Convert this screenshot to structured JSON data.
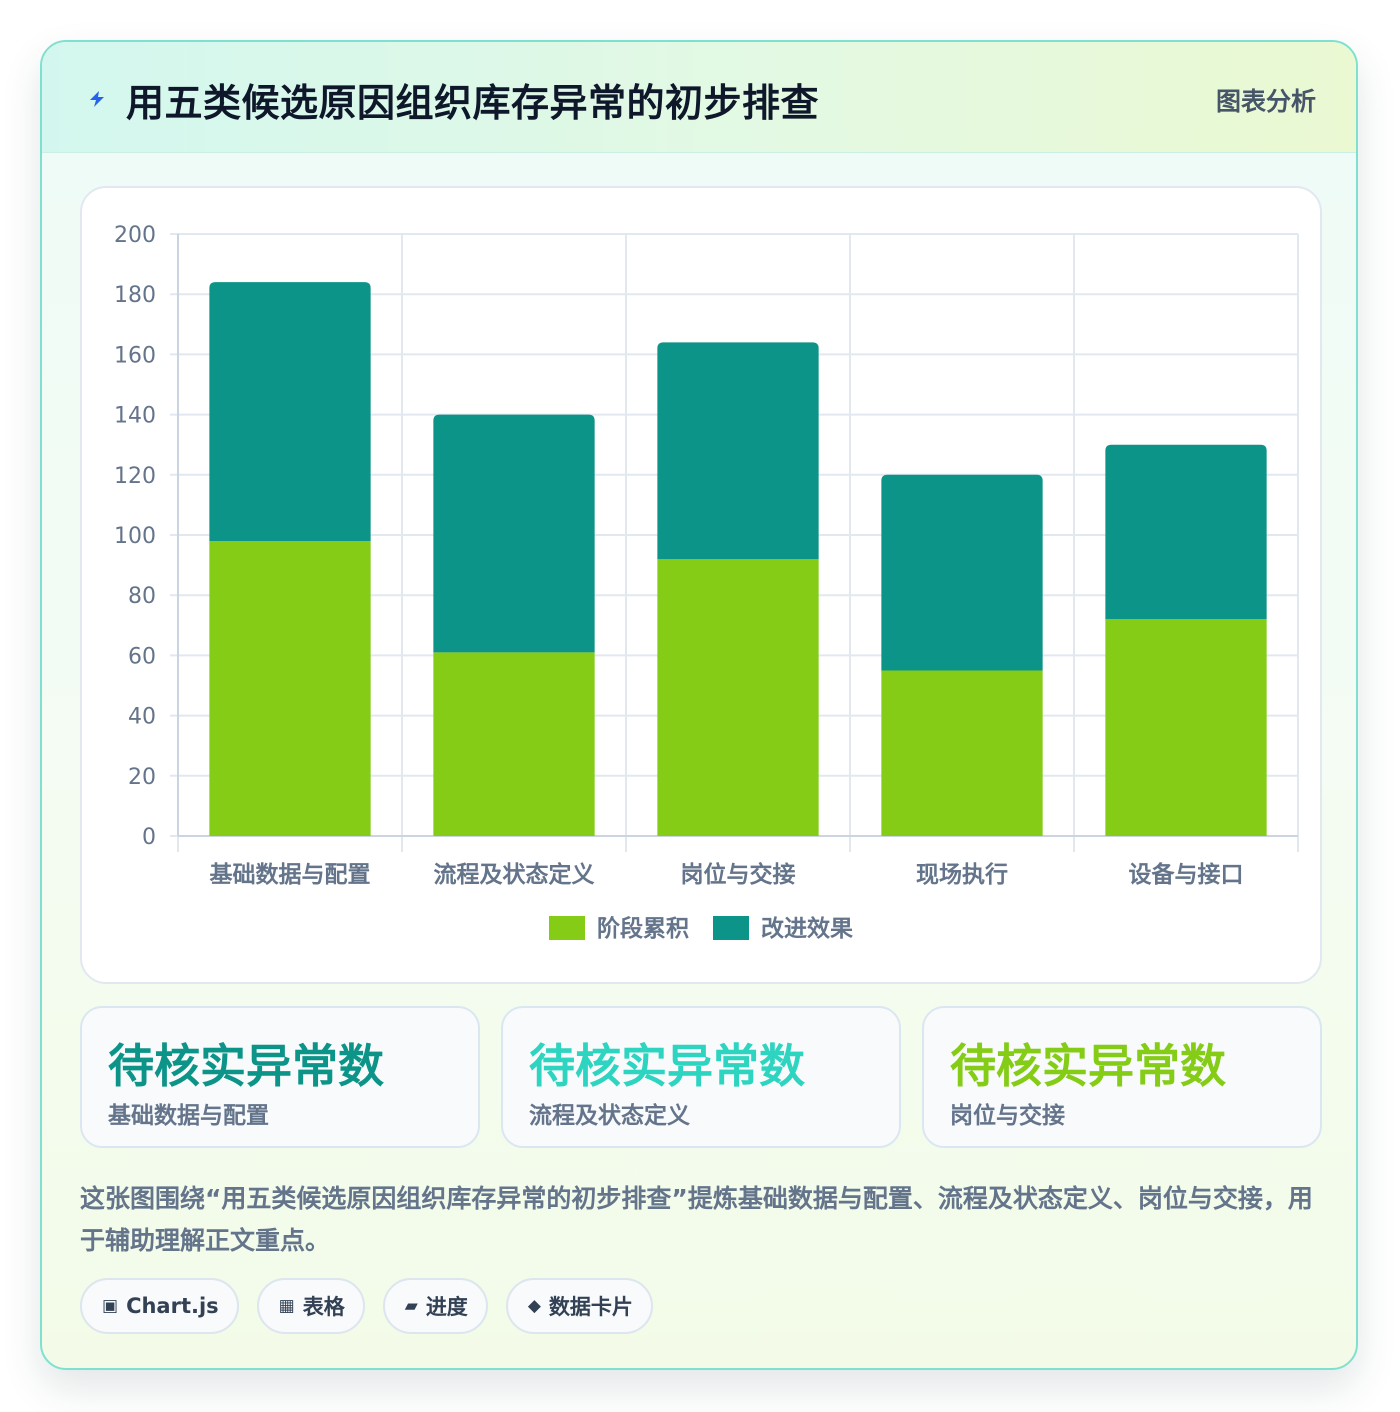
{
  "header": {
    "title": "用五类候选原因组织库存异常的初步排查",
    "tag": "图表分析",
    "icon": "lightning-icon"
  },
  "chart_data": {
    "type": "bar",
    "stacked": true,
    "categories": [
      "基础数据与配置",
      "流程及状态定义",
      "岗位与交接",
      "现场执行",
      "设备与接口"
    ],
    "series": [
      {
        "name": "阶段累积",
        "color": "#84cc16",
        "values": [
          98,
          61,
          92,
          55,
          72
        ]
      },
      {
        "name": "改进效果",
        "color": "#0d9488",
        "values": [
          86,
          79,
          72,
          65,
          58
        ]
      }
    ],
    "ylim": [
      0,
      200
    ],
    "yticks": [
      0,
      20,
      40,
      60,
      80,
      100,
      120,
      140,
      160,
      180,
      200
    ],
    "grid": true,
    "legend_position": "bottom"
  },
  "stats": [
    {
      "value": "待核实异常数",
      "label": "基础数据与配置",
      "color": "#0d9488"
    },
    {
      "value": "待核实异常数",
      "label": "流程及状态定义",
      "color": "#2dd4bf"
    },
    {
      "value": "待核实异常数",
      "label": "岗位与交接",
      "color": "#84cc16"
    }
  ],
  "description": "这张图围绕“用五类候选原因组织库存异常的初步排查”提炼基础数据与配置、流程及状态定义、岗位与交接，用于辅助理解正文重点。",
  "chips": [
    {
      "icon": "▣",
      "icon_name": "chart-icon",
      "label": "Chart.js"
    },
    {
      "icon": "▦",
      "icon_name": "table-icon",
      "label": "表格"
    },
    {
      "icon": "▰",
      "icon_name": "progress-icon",
      "label": "进度"
    },
    {
      "icon": "◆",
      "icon_name": "diamond-icon",
      "label": "数据卡片"
    }
  ]
}
